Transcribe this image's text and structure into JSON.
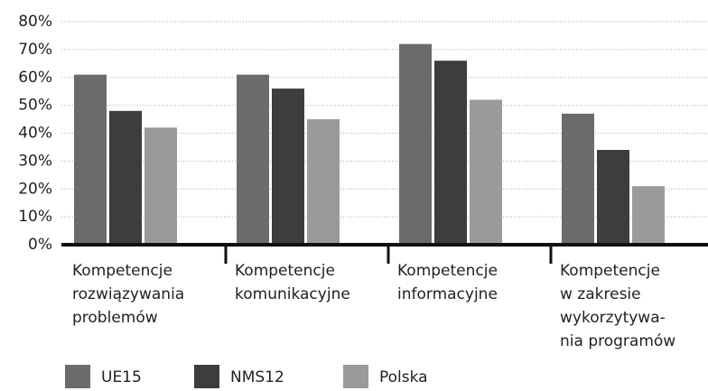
{
  "chart_data": {
    "type": "bar",
    "categories": [
      [
        "Kompetencje",
        "rozwiązywania",
        "problemów"
      ],
      [
        "Kompetencje",
        "komunikacyjne"
      ],
      [
        "Kompetencje",
        "informacyjne"
      ],
      [
        "Kompetencje",
        "w zakresie",
        "wykorzytywa-",
        "nia programów"
      ]
    ],
    "series": [
      {
        "name": "UE15",
        "color": "#6b6b6b",
        "values": [
          61,
          61,
          72,
          47
        ]
      },
      {
        "name": "NMS12",
        "color": "#3d3d3d",
        "values": [
          48,
          56,
          66,
          34
        ]
      },
      {
        "name": "Polska",
        "color": "#9a9a9a",
        "values": [
          42,
          45,
          52,
          21
        ]
      }
    ],
    "ylim": [
      0,
      80
    ],
    "yticks": [
      {
        "value": 0,
        "label": "0%"
      },
      {
        "value": 10,
        "label": "10%"
      },
      {
        "value": 20,
        "label": "20%"
      },
      {
        "value": 30,
        "label": "30%"
      },
      {
        "value": 40,
        "label": "40%"
      },
      {
        "value": 50,
        "label": "50%"
      },
      {
        "value": 60,
        "label": "60%"
      },
      {
        "value": 70,
        "label": "70%"
      },
      {
        "value": 80,
        "label": "80%"
      }
    ],
    "grid": true,
    "legend": "bottom"
  }
}
